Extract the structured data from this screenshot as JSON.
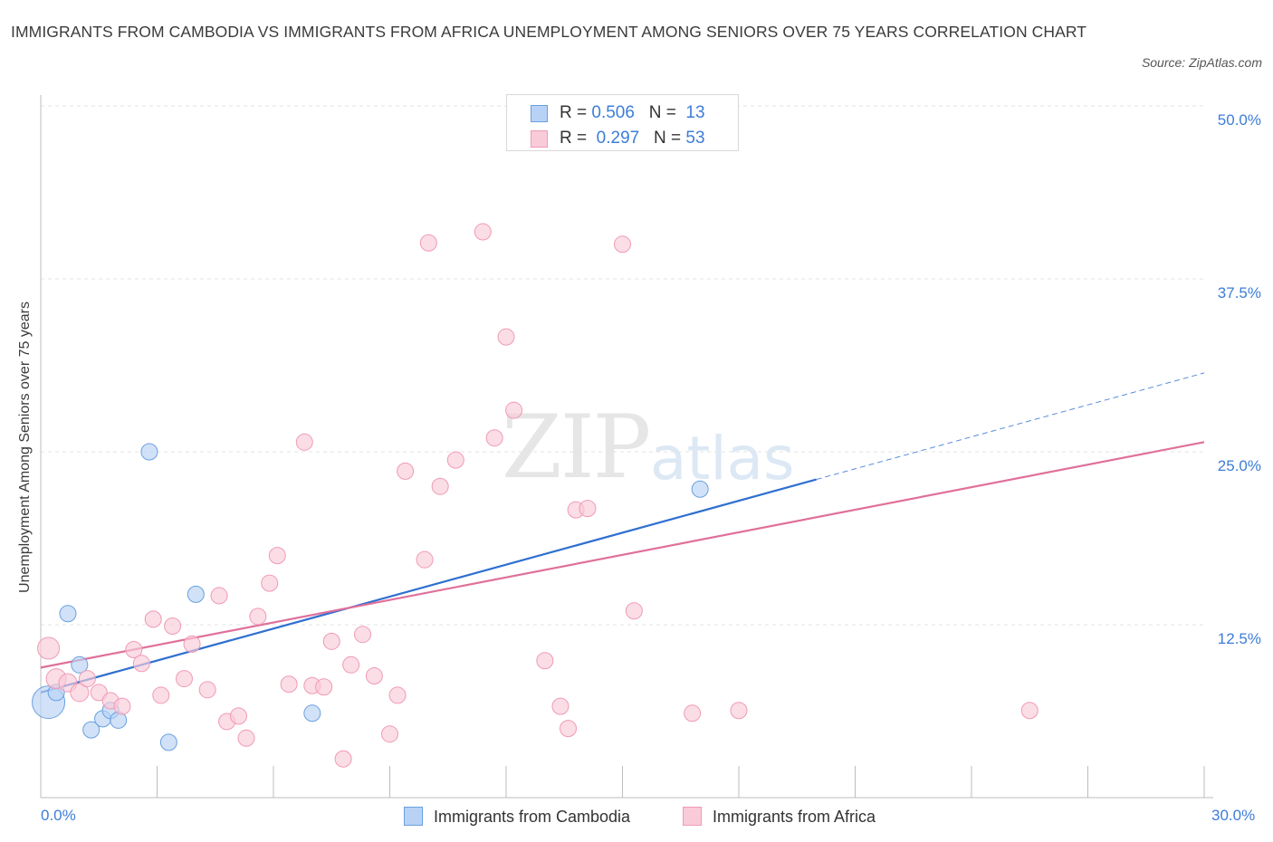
{
  "chart_data": {
    "type": "scatter",
    "title": "IMMIGRANTS FROM CAMBODIA VS IMMIGRANTS FROM AFRICA UNEMPLOYMENT AMONG SENIORS OVER 75 YEARS CORRELATION CHART",
    "source": "Source: ZipAtlas.com",
    "xlabel": "",
    "ylabel": "Unemployment Among Seniors over 75 years",
    "xlim": [
      0,
      30
    ],
    "ylim": [
      0,
      50
    ],
    "x_tick_labels": {
      "left": "0.0%",
      "right": "30.0%"
    },
    "y_ticks": [
      12.5,
      25.0,
      37.5,
      50.0
    ],
    "y_tick_labels": [
      "12.5%",
      "25.0%",
      "37.5%",
      "50.0%"
    ],
    "grid": true,
    "legend_position": "top-center",
    "watermark": {
      "zip": "ZIP",
      "atlas": "atlas"
    },
    "series": [
      {
        "name": "Immigrants from Cambodia",
        "color": "#6a9fe0",
        "fill": "#b8d2f5",
        "line_color": "#2f6fd0",
        "R": "0.506",
        "N": "13",
        "trend": {
          "x0": 0,
          "y0": 7.6,
          "x1": 20,
          "y1": 23.0,
          "dash_to_x": 30,
          "dash_to_y": 30.7
        },
        "points": [
          {
            "x": 0.2,
            "y": 6.9,
            "size": 18
          },
          {
            "x": 0.4,
            "y": 7.6,
            "size": 9
          },
          {
            "x": 0.7,
            "y": 13.3,
            "size": 9
          },
          {
            "x": 1.0,
            "y": 9.6,
            "size": 9
          },
          {
            "x": 1.3,
            "y": 4.9,
            "size": 9
          },
          {
            "x": 1.6,
            "y": 5.7,
            "size": 9
          },
          {
            "x": 1.8,
            "y": 6.3,
            "size": 9
          },
          {
            "x": 2.0,
            "y": 5.6,
            "size": 9
          },
          {
            "x": 2.8,
            "y": 25.0,
            "size": 9
          },
          {
            "x": 3.3,
            "y": 4.0,
            "size": 9
          },
          {
            "x": 4.0,
            "y": 14.7,
            "size": 9
          },
          {
            "x": 7.0,
            "y": 6.1,
            "size": 9
          },
          {
            "x": 17.0,
            "y": 22.3,
            "size": 9
          }
        ]
      },
      {
        "name": "Immigrants from Africa",
        "color": "#f09ab5",
        "fill": "#f9cbd9",
        "line_color": "#e0709a",
        "R": "0.297",
        "N": "53",
        "trend": {
          "x0": 0,
          "y0": 9.4,
          "x1": 30,
          "y1": 25.7
        },
        "points": [
          {
            "x": 0.2,
            "y": 10.8,
            "size": 12
          },
          {
            "x": 0.4,
            "y": 8.6,
            "size": 11
          },
          {
            "x": 0.7,
            "y": 8.3,
            "size": 10
          },
          {
            "x": 1.0,
            "y": 7.6,
            "size": 10
          },
          {
            "x": 1.2,
            "y": 8.6,
            "size": 9
          },
          {
            "x": 1.5,
            "y": 7.6,
            "size": 9
          },
          {
            "x": 1.8,
            "y": 7.0,
            "size": 9
          },
          {
            "x": 2.1,
            "y": 6.6,
            "size": 9
          },
          {
            "x": 2.4,
            "y": 10.7,
            "size": 9
          },
          {
            "x": 2.6,
            "y": 9.7,
            "size": 9
          },
          {
            "x": 2.9,
            "y": 12.9,
            "size": 9
          },
          {
            "x": 3.1,
            "y": 7.4,
            "size": 9
          },
          {
            "x": 3.4,
            "y": 12.4,
            "size": 9
          },
          {
            "x": 3.7,
            "y": 8.6,
            "size": 9
          },
          {
            "x": 3.9,
            "y": 11.1,
            "size": 9
          },
          {
            "x": 4.3,
            "y": 7.8,
            "size": 9
          },
          {
            "x": 4.6,
            "y": 14.6,
            "size": 9
          },
          {
            "x": 4.8,
            "y": 5.5,
            "size": 9
          },
          {
            "x": 5.1,
            "y": 5.9,
            "size": 9
          },
          {
            "x": 5.3,
            "y": 4.3,
            "size": 9
          },
          {
            "x": 5.6,
            "y": 13.1,
            "size": 9
          },
          {
            "x": 5.9,
            "y": 15.5,
            "size": 9
          },
          {
            "x": 6.1,
            "y": 17.5,
            "size": 9
          },
          {
            "x": 6.4,
            "y": 8.2,
            "size": 9
          },
          {
            "x": 6.8,
            "y": 25.7,
            "size": 9
          },
          {
            "x": 7.0,
            "y": 8.1,
            "size": 9
          },
          {
            "x": 7.3,
            "y": 8.0,
            "size": 9
          },
          {
            "x": 7.5,
            "y": 11.3,
            "size": 9
          },
          {
            "x": 7.8,
            "y": 2.8,
            "size": 9
          },
          {
            "x": 8.0,
            "y": 9.6,
            "size": 9
          },
          {
            "x": 8.3,
            "y": 11.8,
            "size": 9
          },
          {
            "x": 8.6,
            "y": 8.8,
            "size": 9
          },
          {
            "x": 9.0,
            "y": 4.6,
            "size": 9
          },
          {
            "x": 9.2,
            "y": 7.4,
            "size": 9
          },
          {
            "x": 9.4,
            "y": 23.6,
            "size": 9
          },
          {
            "x": 9.9,
            "y": 17.2,
            "size": 9
          },
          {
            "x": 10.0,
            "y": 40.1,
            "size": 9
          },
          {
            "x": 10.3,
            "y": 22.5,
            "size": 9
          },
          {
            "x": 10.7,
            "y": 24.4,
            "size": 9
          },
          {
            "x": 11.4,
            "y": 40.9,
            "size": 9
          },
          {
            "x": 11.7,
            "y": 26.0,
            "size": 9
          },
          {
            "x": 12.0,
            "y": 33.3,
            "size": 9
          },
          {
            "x": 12.2,
            "y": 28.0,
            "size": 9
          },
          {
            "x": 13.0,
            "y": 9.9,
            "size": 9
          },
          {
            "x": 13.4,
            "y": 6.6,
            "size": 9
          },
          {
            "x": 13.6,
            "y": 5.0,
            "size": 9
          },
          {
            "x": 13.8,
            "y": 20.8,
            "size": 9
          },
          {
            "x": 14.1,
            "y": 20.9,
            "size": 9
          },
          {
            "x": 15.0,
            "y": 40.0,
            "size": 9
          },
          {
            "x": 15.3,
            "y": 13.5,
            "size": 9
          },
          {
            "x": 16.8,
            "y": 6.1,
            "size": 9
          },
          {
            "x": 18.0,
            "y": 6.3,
            "size": 9
          },
          {
            "x": 25.5,
            "y": 6.3,
            "size": 9
          }
        ]
      }
    ]
  }
}
